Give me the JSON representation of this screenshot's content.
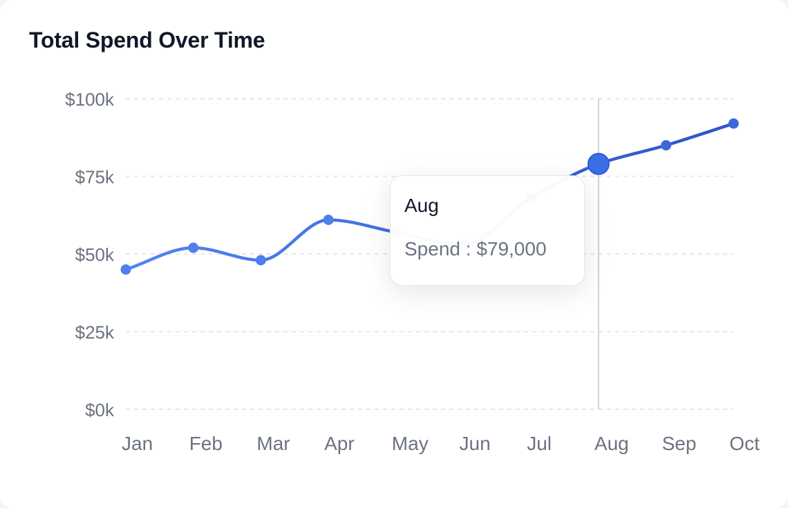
{
  "card": {
    "title": "Total Spend Over Time"
  },
  "chart_data": {
    "type": "line",
    "title": "Total Spend Over Time",
    "xlabel": "",
    "ylabel": "",
    "categories": [
      "Jan",
      "Feb",
      "Mar",
      "Apr",
      "May",
      "Jun",
      "Jul",
      "Aug",
      "Sep",
      "Oct"
    ],
    "series": [
      {
        "key": "Spend",
        "values": [
          45000,
          52000,
          48000,
          61000,
          57000,
          53000,
          68000,
          79000,
          85000,
          92000
        ]
      }
    ],
    "ylim": [
      0,
      100000
    ],
    "yticks": [
      "$0k",
      "$25k",
      "$50k",
      "$75k",
      "$100k"
    ],
    "grid": true,
    "line_color_start": "#4f86f0",
    "line_color_end": "#2f52cc",
    "active_category": "Aug"
  },
  "tooltip": {
    "label": "Aug",
    "series_name": "Spend",
    "separator": " : ",
    "value": "$79,000"
  }
}
